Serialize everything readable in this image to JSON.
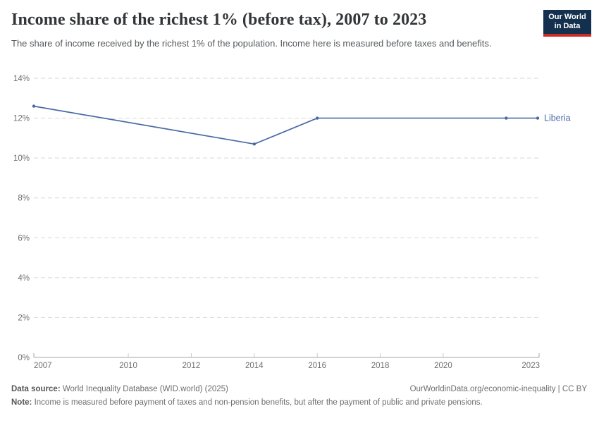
{
  "header": {
    "title": "Income share of the richest 1% (before tax), 2007 to 2023",
    "subtitle": "The share of income received by the richest 1% of the population. Income here is measured before taxes and benefits.",
    "logo": {
      "line1": "Our World",
      "line2": "in Data",
      "bg_color": "#13304e",
      "bar_color": "#cb2d24"
    }
  },
  "chart_data": {
    "type": "line",
    "title": "Income share of the richest 1% (before tax), 2007 to 2023",
    "xlabel": "",
    "ylabel": "",
    "xlim": [
      2007,
      2023
    ],
    "ylim": [
      0,
      14
    ],
    "x_ticks": [
      2007,
      2010,
      2012,
      2014,
      2016,
      2018,
      2020,
      2023
    ],
    "y_ticks": [
      0,
      2,
      4,
      6,
      8,
      10,
      12,
      14
    ],
    "y_tick_suffix": "%",
    "grid": "horizontal-dashed",
    "legend_position": "end-of-line-label",
    "series": [
      {
        "name": "Liberia",
        "color": "#4a6aa5",
        "points": [
          {
            "x": 2007,
            "y": 12.6
          },
          {
            "x": 2014,
            "y": 10.7
          },
          {
            "x": 2016,
            "y": 12.0
          },
          {
            "x": 2022,
            "y": 12.0
          },
          {
            "x": 2023,
            "y": 12.0
          }
        ]
      }
    ]
  },
  "footer": {
    "data_source_label": "Data source:",
    "data_source_text": " World Inequality Database (WID.world) (2025)",
    "link": "OurWorldinData.org/economic-inequality | CC BY",
    "note_label": "Note:",
    "note_text": " Income is measured before payment of taxes and non-pension benefits, but after the payment of public and private pensions."
  }
}
